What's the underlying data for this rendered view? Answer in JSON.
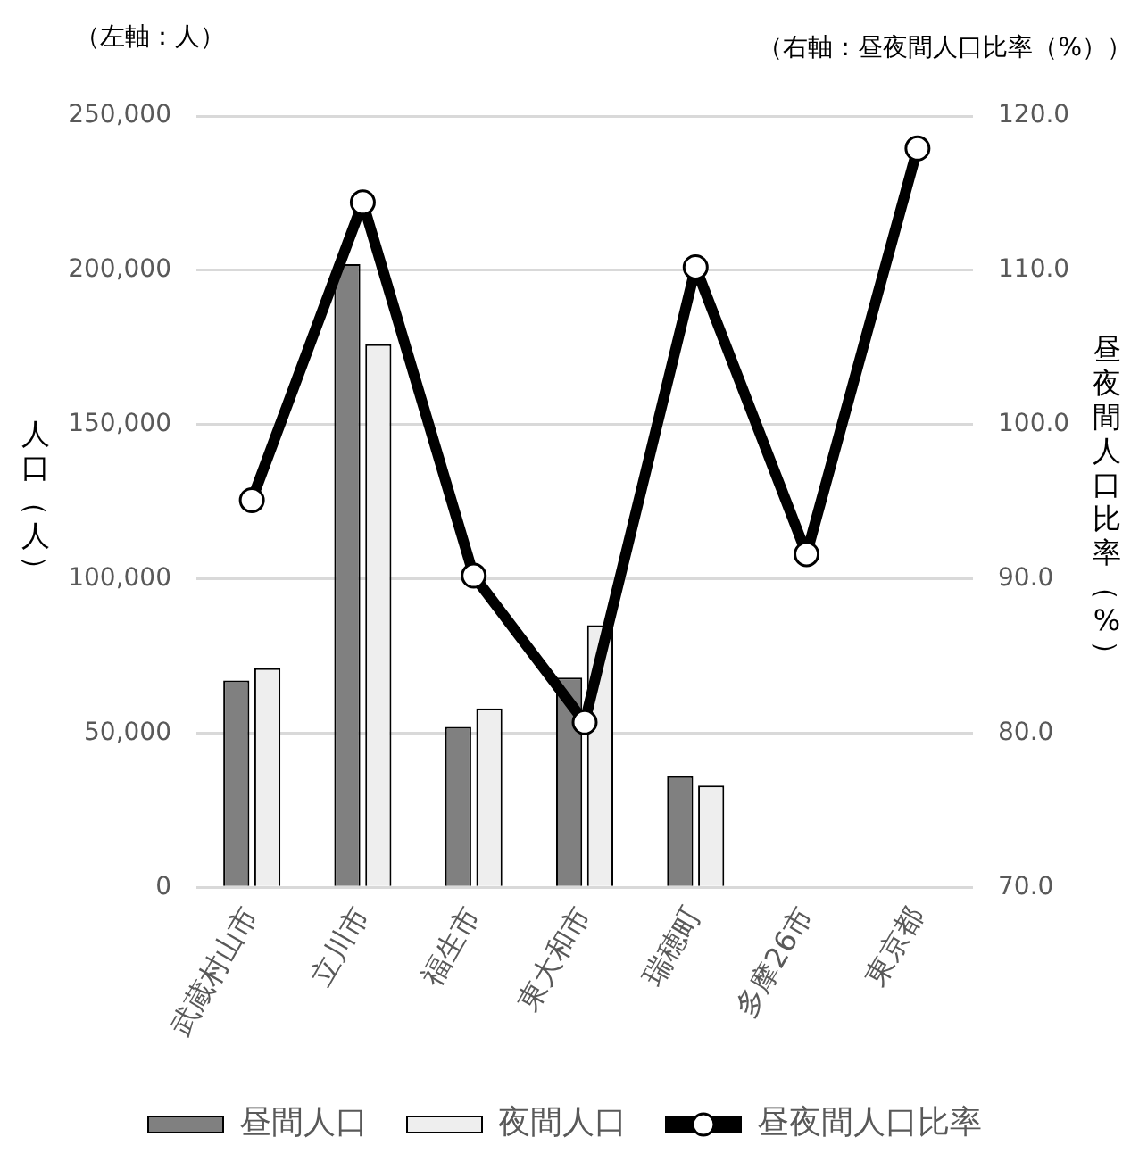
{
  "chart_data": {
    "type": "bar",
    "categories": [
      "武蔵村山市",
      "立川市",
      "福生市",
      "東大和市",
      "瑞穂町",
      "多摩26市",
      "東京都"
    ],
    "ylabel": "人口（人）",
    "y2label": "昼夜間人口比率（%）",
    "annotations": [
      "（左軸：人）",
      "（右軸：昼夜間人口比率（%））"
    ],
    "series": [
      {
        "name": "昼間人口",
        "color": "#808080",
        "values": [
          67000,
          202000,
          52000,
          68000,
          36000,
          null,
          null
        ]
      },
      {
        "name": "夜間人口",
        "color": "#eeeeee",
        "values": [
          71000,
          176000,
          58000,
          85000,
          33000,
          null,
          null
        ]
      },
      {
        "name": "昼夜間人口比率",
        "type": "line",
        "axis": "y2",
        "color": "#000000",
        "values": [
          95.1,
          114.4,
          90.2,
          80.7,
          110.2,
          91.6,
          117.9
        ]
      }
    ],
    "ylim": [
      0,
      250000
    ],
    "yticks": [
      0,
      {
        "value": 50000,
        "label": "50,000"
      },
      {
        "value": 100000,
        "label": "100,000"
      },
      {
        "value": 150000,
        "label": "150,000"
      },
      {
        "value": 200000,
        "label": "200,000"
      },
      {
        "value": 250000,
        "label": "250,000"
      }
    ],
    "y2lim": [
      70,
      120
    ],
    "y2ticks": [
      {
        "value": 70,
        "label": "70.0"
      },
      {
        "value": 80,
        "label": "80.0"
      },
      {
        "value": 90,
        "label": "90.0"
      },
      {
        "value": 100,
        "label": "100.0"
      },
      {
        "value": 110,
        "label": "110.0"
      },
      {
        "value": 120,
        "label": "120.0"
      }
    ],
    "grid": "y",
    "legend": "bottom",
    "marker": "circle",
    "line_style": "solid"
  }
}
